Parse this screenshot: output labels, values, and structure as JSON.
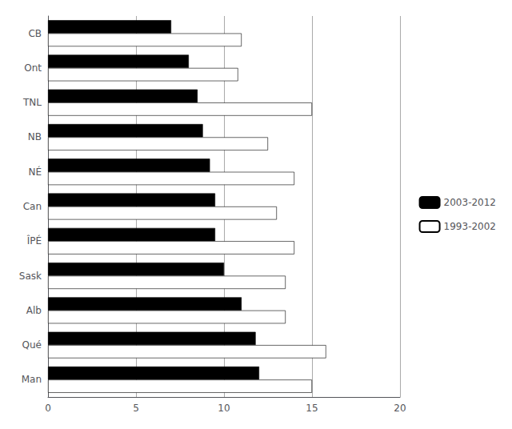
{
  "chart_data": {
    "type": "bar",
    "orientation": "horizontal",
    "categories": [
      "CB",
      "Ont",
      "TNL",
      "NB",
      "NÉ",
      "Can",
      "ÎPÉ",
      "Sask",
      "Alb",
      "Qué",
      "Man"
    ],
    "series": [
      {
        "name": "2003-2012",
        "color": "#000000",
        "values": [
          7.0,
          8.0,
          8.5,
          8.8,
          9.2,
          9.5,
          9.5,
          10.0,
          11.0,
          11.8,
          12.0
        ]
      },
      {
        "name": "1993-2002",
        "color": "#ffffff",
        "values": [
          11.0,
          10.8,
          15.0,
          12.5,
          14.0,
          13.0,
          14.0,
          13.5,
          13.5,
          15.8,
          15.0
        ]
      }
    ],
    "xlim": [
      0,
      20
    ],
    "xticks": [
      0,
      5,
      10,
      15,
      20
    ],
    "grid": true,
    "legend": "right"
  }
}
